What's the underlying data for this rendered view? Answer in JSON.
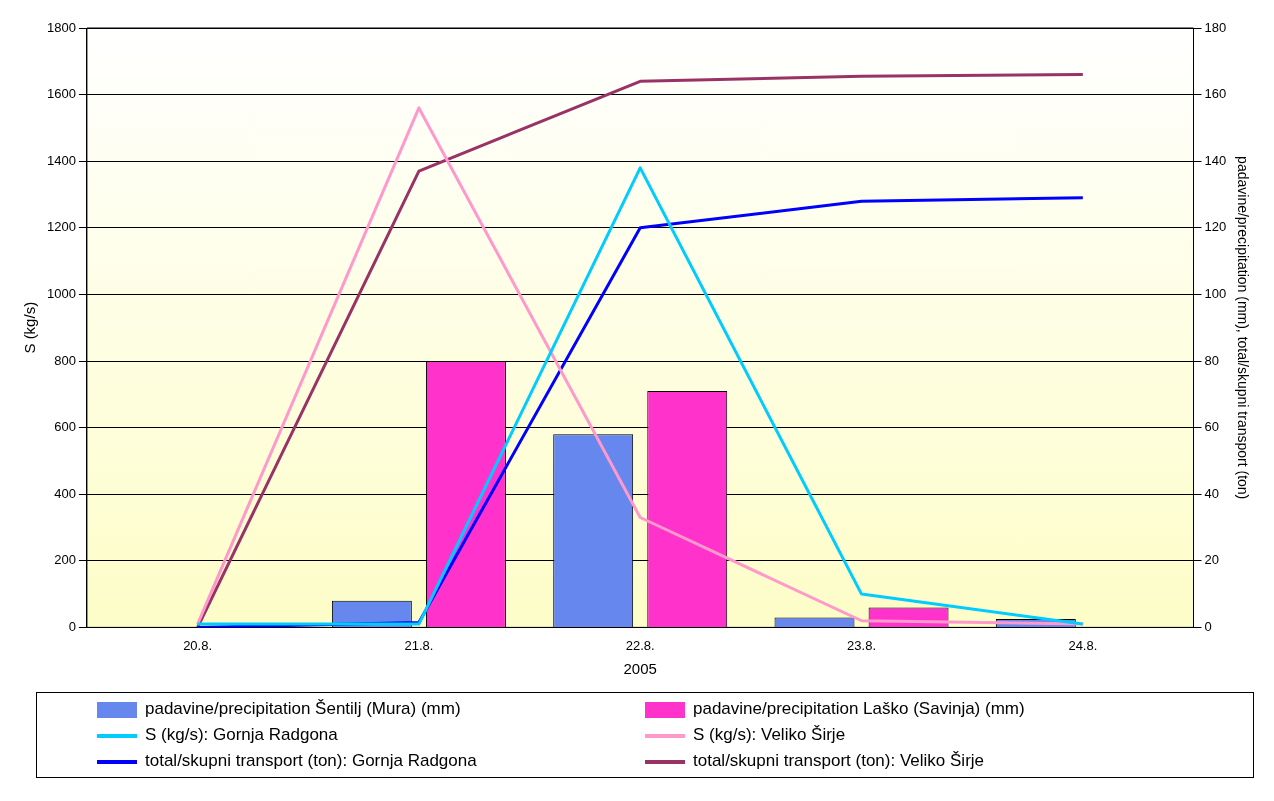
{
  "chart_data": {
    "type": "bar",
    "xlabel": "2005",
    "ylabel": "S (kg/s)",
    "y2label": "padavine/precipitation (mm), total/skupni transport (ton)",
    "categories": [
      "20.8.",
      "21.8.",
      "22.8.",
      "23.8.",
      "24.8."
    ],
    "series": [
      {
        "name": "padavine/precipitation Šentilj (Mura) (mm)",
        "axis": "y2",
        "color": "#6688ee",
        "values": [
          null,
          8,
          58,
          3,
          2.5
        ]
      },
      {
        "name": "padavine/precipitation Laško (Savinja) (mm)",
        "axis": "y2",
        "color": "#ff33cc",
        "values": [
          null,
          80,
          71,
          6,
          null
        ]
      },
      {
        "name": "S (kg/s): Gornja Radgona",
        "type": "line",
        "color": "#00ccff",
        "values": [
          10,
          10,
          1380,
          100,
          10
        ]
      },
      {
        "name": "S (kg/s): Veliko Širje",
        "type": "line",
        "color": "#ff99cc",
        "values": [
          10,
          1560,
          330,
          20,
          10
        ]
      },
      {
        "name": "total/skupni transport (ton): Gornja Radgona",
        "type": "line",
        "axis": "y2",
        "color": "#0000ff",
        "values": [
          0,
          1.5,
          120,
          128,
          129
        ]
      },
      {
        "name": "total/skupni transport (ton): Veliko Širje",
        "type": "line",
        "axis": "y2",
        "color": "#993366",
        "values": [
          0,
          137,
          164,
          165.5,
          166
        ]
      }
    ],
    "ylim": [
      0,
      1800
    ],
    "yticks": [
      0,
      200,
      400,
      600,
      800,
      1000,
      1200,
      1400,
      1600,
      1800
    ],
    "y2lim": [
      0,
      180
    ],
    "y2ticks": [
      0,
      20,
      40,
      60,
      80,
      100,
      120,
      140,
      160,
      180
    ],
    "grid": "y",
    "legend": "bottom",
    "marker": "none"
  }
}
